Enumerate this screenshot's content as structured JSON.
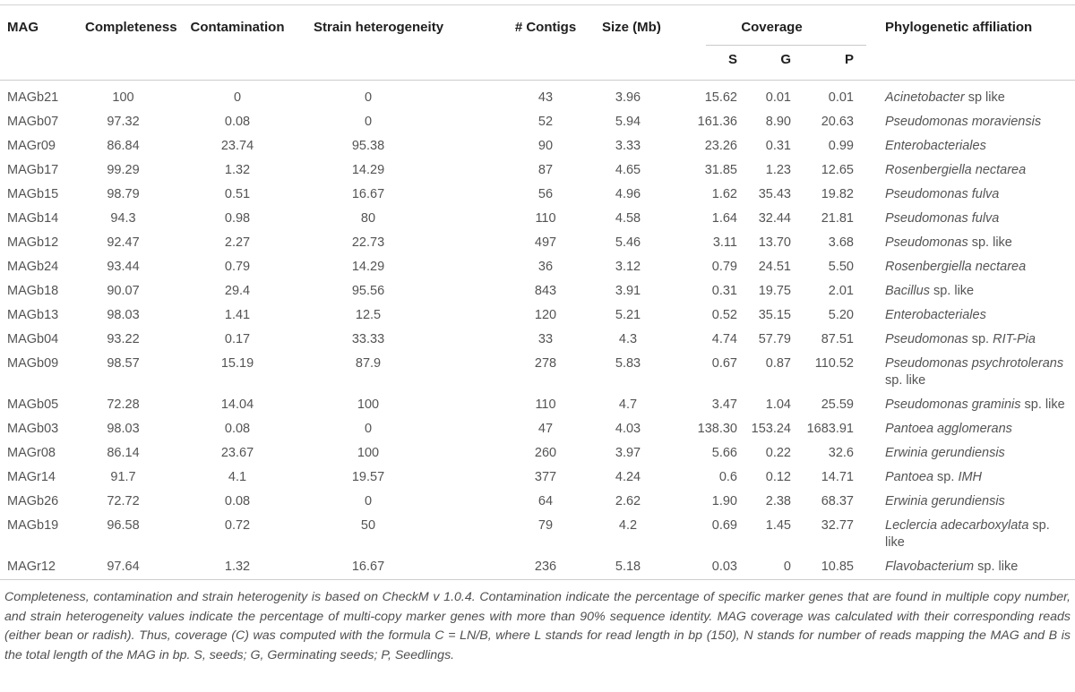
{
  "table": {
    "headers": {
      "mag": "MAG",
      "completeness": "Completeness",
      "contamination": "Contamination",
      "strain_heterogeneity": "Strain heterogeneity",
      "contigs": "# Contigs",
      "size": "Size (Mb)",
      "coverage": "Coverage",
      "coverage_s": "S",
      "coverage_g": "G",
      "coverage_p": "P",
      "phylogenetic": "Phylogenetic affiliation"
    },
    "rows": [
      {
        "mag": "MAGb21",
        "completeness": "100",
        "contamination": "0",
        "strain": "0",
        "contigs": "43",
        "size": "3.96",
        "s": "15.62",
        "g": "0.01",
        "p": "0.01",
        "phylo": [
          [
            "Acinetobacter",
            true
          ],
          [
            " sp like",
            false
          ]
        ]
      },
      {
        "mag": "MAGb07",
        "completeness": "97.32",
        "contamination": "0.08",
        "strain": "0",
        "contigs": "52",
        "size": "5.94",
        "s": "161.36",
        "g": "8.90",
        "p": "20.63",
        "phylo": [
          [
            "Pseudomonas moraviensis",
            true
          ]
        ]
      },
      {
        "mag": "MAGr09",
        "completeness": "86.84",
        "contamination": "23.74",
        "strain": "95.38",
        "contigs": "90",
        "size": "3.33",
        "s": "23.26",
        "g": "0.31",
        "p": "0.99",
        "phylo": [
          [
            "Enterobacteriales",
            true
          ]
        ]
      },
      {
        "mag": "MAGb17",
        "completeness": "99.29",
        "contamination": "1.32",
        "strain": "14.29",
        "contigs": "87",
        "size": "4.65",
        "s": "31.85",
        "g": "1.23",
        "p": "12.65",
        "phylo": [
          [
            "Rosenbergiella nectarea",
            true
          ]
        ]
      },
      {
        "mag": "MAGb15",
        "completeness": "98.79",
        "contamination": "0.51",
        "strain": "16.67",
        "contigs": "56",
        "size": "4.96",
        "s": "1.62",
        "g": "35.43",
        "p": "19.82",
        "phylo": [
          [
            "Pseudomonas fulva",
            true
          ]
        ]
      },
      {
        "mag": "MAGb14",
        "completeness": "94.3",
        "contamination": "0.98",
        "strain": "80",
        "contigs": "110",
        "size": "4.58",
        "s": "1.64",
        "g": "32.44",
        "p": "21.81",
        "phylo": [
          [
            "Pseudomonas fulva",
            true
          ]
        ]
      },
      {
        "mag": "MAGb12",
        "completeness": "92.47",
        "contamination": "2.27",
        "strain": "22.73",
        "contigs": "497",
        "size": "5.46",
        "s": "3.11",
        "g": "13.70",
        "p": "3.68",
        "phylo": [
          [
            "Pseudomonas",
            true
          ],
          [
            " sp. like",
            false
          ]
        ]
      },
      {
        "mag": "MAGb24",
        "completeness": "93.44",
        "contamination": "0.79",
        "strain": "14.29",
        "contigs": "36",
        "size": "3.12",
        "s": "0.79",
        "g": "24.51",
        "p": "5.50",
        "phylo": [
          [
            "Rosenbergiella nectarea",
            true
          ]
        ]
      },
      {
        "mag": "MAGb18",
        "completeness": "90.07",
        "contamination": "29.4",
        "strain": "95.56",
        "contigs": "843",
        "size": "3.91",
        "s": "0.31",
        "g": "19.75",
        "p": "2.01",
        "phylo": [
          [
            "Bacillus",
            true
          ],
          [
            " sp. like",
            false
          ]
        ]
      },
      {
        "mag": "MAGb13",
        "completeness": "98.03",
        "contamination": "1.41",
        "strain": "12.5",
        "contigs": "120",
        "size": "5.21",
        "s": "0.52",
        "g": "35.15",
        "p": "5.20",
        "phylo": [
          [
            "Enterobacteriales",
            true
          ]
        ]
      },
      {
        "mag": "MAGb04",
        "completeness": "93.22",
        "contamination": "0.17",
        "strain": "33.33",
        "contigs": "33",
        "size": "4.3",
        "s": "4.74",
        "g": "57.79",
        "p": "87.51",
        "phylo": [
          [
            "Pseudomonas",
            true
          ],
          [
            " sp. ",
            false
          ],
          [
            "RIT-Pia",
            true
          ]
        ]
      },
      {
        "mag": "MAGb09",
        "completeness": "98.57",
        "contamination": "15.19",
        "strain": "87.9",
        "contigs": "278",
        "size": "5.83",
        "s": "0.67",
        "g": "0.87",
        "p": "110.52",
        "phylo": [
          [
            "Pseudomonas psychrotolerans",
            true
          ],
          [
            " sp. like",
            false
          ]
        ]
      },
      {
        "mag": "MAGb05",
        "completeness": "72.28",
        "contamination": "14.04",
        "strain": "100",
        "contigs": "110",
        "size": "4.7",
        "s": "3.47",
        "g": "1.04",
        "p": "25.59",
        "phylo": [
          [
            "Pseudomonas graminis",
            true
          ],
          [
            " sp. like",
            false
          ]
        ]
      },
      {
        "mag": "MAGb03",
        "completeness": "98.03",
        "contamination": "0.08",
        "strain": "0",
        "contigs": "47",
        "size": "4.03",
        "s": "138.30",
        "g": "153.24",
        "p": "1683.91",
        "phylo": [
          [
            "Pantoea agglomerans",
            true
          ]
        ]
      },
      {
        "mag": "MAGr08",
        "completeness": "86.14",
        "contamination": "23.67",
        "strain": "100",
        "contigs": "260",
        "size": "3.97",
        "s": "5.66",
        "g": "0.22",
        "p": "32.6",
        "phylo": [
          [
            "Erwinia gerundiensis",
            true
          ]
        ]
      },
      {
        "mag": "MAGr14",
        "completeness": "91.7",
        "contamination": "4.1",
        "strain": "19.57",
        "contigs": "377",
        "size": "4.24",
        "s": "0.6",
        "g": "0.12",
        "p": "14.71",
        "phylo": [
          [
            "Pantoea",
            true
          ],
          [
            " sp. ",
            false
          ],
          [
            "IMH",
            true
          ]
        ]
      },
      {
        "mag": "MAGb26",
        "completeness": "72.72",
        "contamination": "0.08",
        "strain": "0",
        "contigs": "64",
        "size": "2.62",
        "s": "1.90",
        "g": "2.38",
        "p": "68.37",
        "phylo": [
          [
            "Erwinia gerundiensis",
            true
          ]
        ]
      },
      {
        "mag": "MAGb19",
        "completeness": "96.58",
        "contamination": "0.72",
        "strain": "50",
        "contigs": "79",
        "size": "4.2",
        "s": "0.69",
        "g": "1.45",
        "p": "32.77",
        "phylo": [
          [
            "Leclercia adecarboxylata",
            true
          ],
          [
            " sp. like",
            false
          ]
        ]
      },
      {
        "mag": "MAGr12",
        "completeness": "97.64",
        "contamination": "1.32",
        "strain": "16.67",
        "contigs": "236",
        "size": "5.18",
        "s": "0.03",
        "g": "0",
        "p": "10.85",
        "phylo": [
          [
            "Flavobacterium",
            true
          ],
          [
            " sp. like",
            false
          ]
        ]
      }
    ]
  },
  "footnote": "Completeness, contamination and strain heterogenity is based on CheckM v 1.0.4. Contamination indicate the percentage of specific marker genes that are found in multiple copy number, and strain heterogeneity values indicate the percentage of multi-copy marker genes with more than 90% sequence identity. MAG coverage was calculated with their corresponding reads (either bean or radish). Thus, coverage (C) was computed with the formula C = LN/B, where L stands for read length in bp (150), N stands for number of reads mapping the MAG and B is the total length of the MAG in bp. S, seeds; G, Germinating seeds; P, Seedlings."
}
